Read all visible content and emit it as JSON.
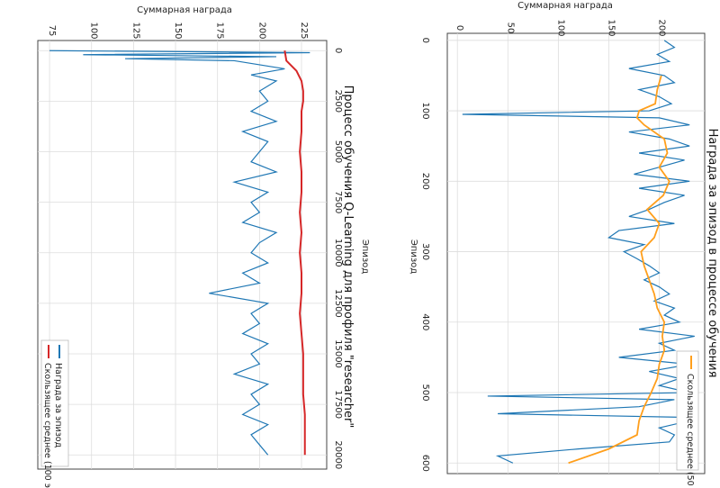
{
  "colors": {
    "episode": "#1f77b4",
    "moving_avg_left": "#ff9f1c",
    "moving_avg_right": "#d62728",
    "grid": "#dddddd",
    "frame": "#444444"
  },
  "chart_data": [
    {
      "type": "line",
      "title": "Награда за эпизод в процессе обучения",
      "xlabel": "Эпизод",
      "ylabel": "Суммарная награда",
      "xlim": [
        -10,
        615
      ],
      "ylim": [
        -10,
        245
      ],
      "xticks": [
        0,
        100,
        200,
        300,
        400,
        500,
        600
      ],
      "yticks": [
        0,
        50,
        100,
        150,
        200
      ],
      "grid": true,
      "orientation": "rotated 90° clockwise",
      "legend": {
        "placement": "top-right",
        "entries": [
          "Скользящее среднее (50 эп.)"
        ]
      },
      "series": [
        {
          "name": "",
          "x": [
            0,
            10,
            20,
            30,
            40,
            50,
            60,
            70,
            80,
            90,
            100,
            105,
            110,
            120,
            130,
            140,
            150,
            160,
            170,
            180,
            190,
            200,
            210,
            220,
            230,
            240,
            250,
            260,
            270,
            280,
            290,
            300,
            310,
            320,
            330,
            340,
            350,
            360,
            370,
            380,
            390,
            400,
            410,
            420,
            430,
            440,
            450,
            460,
            470,
            480,
            490,
            500,
            505,
            510,
            520,
            530,
            535,
            540,
            550,
            560,
            570,
            580,
            590,
            600
          ],
          "values": [
            205,
            215,
            198,
            210,
            170,
            205,
            215,
            180,
            200,
            212,
            190,
            5,
            200,
            230,
            170,
            210,
            230,
            180,
            225,
            200,
            175,
            230,
            180,
            225,
            205,
            190,
            170,
            215,
            160,
            150,
            185,
            165,
            178,
            190,
            200,
            185,
            200,
            210,
            195,
            215,
            205,
            220,
            180,
            235,
            200,
            215,
            160,
            230,
            190,
            220,
            200,
            230,
            30,
            215,
            180,
            40,
            220,
            230,
            200,
            215,
            210,
            120,
            40,
            55
          ]
        },
        {
          "name": "Скользящее среднее (50 эп.)",
          "x": [
            50,
            70,
            90,
            100,
            110,
            120,
            140,
            160,
            180,
            200,
            220,
            240,
            260,
            280,
            300,
            320,
            340,
            360,
            380,
            400,
            420,
            440,
            460,
            480,
            500,
            520,
            540,
            560,
            580,
            600
          ],
          "values": [
            202,
            198,
            196,
            180,
            178,
            185,
            205,
            208,
            200,
            210,
            204,
            188,
            200,
            195,
            182,
            185,
            190,
            195,
            198,
            205,
            203,
            205,
            200,
            198,
            192,
            185,
            180,
            178,
            150,
            110
          ]
        }
      ]
    },
    {
      "type": "line",
      "title": "Процесс обучения Q-Learning для профиля \"researcher\"",
      "xlabel": "Эпизод",
      "ylabel": "Суммарная награда",
      "xlim": [
        -500,
        20700
      ],
      "ylim": [
        68,
        240
      ],
      "xticks": [
        0,
        2500,
        5000,
        7500,
        10000,
        12500,
        15000,
        17500,
        20000
      ],
      "yticks": [
        75,
        100,
        125,
        150,
        175,
        200,
        225
      ],
      "grid": true,
      "orientation": "rotated 90° clockwise",
      "legend": {
        "placement": "top-right",
        "entries": [
          "Награда за эпизод",
          "Скользящее среднее (100 эп.)"
        ]
      },
      "series": [
        {
          "name": "Награда за эпизод",
          "x": [
            0,
            100,
            200,
            300,
            400,
            500,
            700,
            900,
            1200,
            1500,
            2000,
            2500,
            3000,
            3500,
            4000,
            4500,
            5000,
            5500,
            6000,
            6500,
            7000,
            7500,
            8000,
            8500,
            9000,
            9500,
            10000,
            10500,
            11000,
            11500,
            12000,
            12500,
            13000,
            13500,
            14000,
            14500,
            15000,
            15500,
            16000,
            16500,
            17000,
            17500,
            18000,
            18500,
            19000,
            19500,
            20000
          ],
          "values": [
            75,
            230,
            95,
            210,
            120,
            185,
            200,
            215,
            195,
            210,
            200,
            205,
            195,
            210,
            190,
            205,
            200,
            195,
            210,
            185,
            205,
            195,
            200,
            190,
            210,
            200,
            195,
            205,
            190,
            200,
            170,
            205,
            195,
            200,
            190,
            205,
            195,
            200,
            185,
            205,
            195,
            200,
            190,
            205,
            195,
            200,
            205
          ]
        },
        {
          "name": "Скользящее среднее (100 эп.)",
          "x": [
            0,
            500,
            1000,
            1500,
            2000,
            2500,
            3000,
            4000,
            5000,
            6000,
            7000,
            8000,
            9000,
            10000,
            11000,
            12000,
            13000,
            14000,
            15000,
            16000,
            17000,
            18000,
            19000,
            20000
          ],
          "values": [
            215,
            216,
            222,
            225,
            226,
            226,
            225,
            225,
            224,
            225,
            225,
            224,
            225,
            224,
            225,
            225,
            224,
            225,
            226,
            226,
            226,
            227,
            227,
            227
          ]
        }
      ]
    }
  ]
}
